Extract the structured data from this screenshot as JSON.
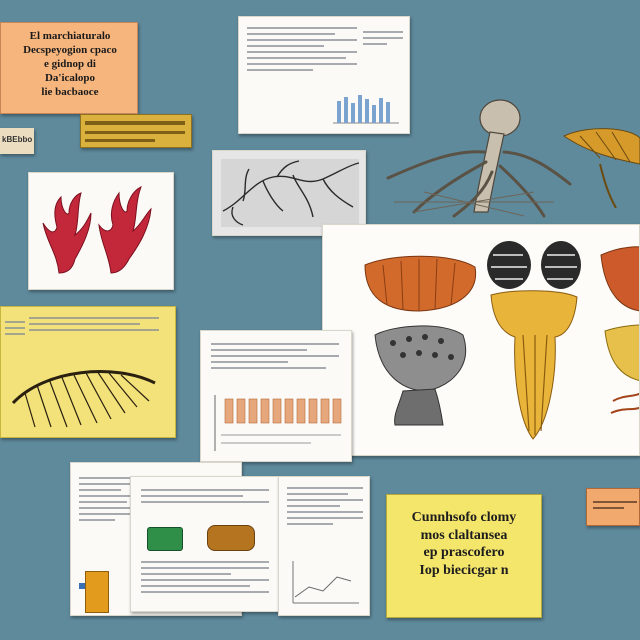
{
  "colors": {
    "background": "#5f8a9c",
    "orange_note": "#f7b57e",
    "yellow_note": "#f4e56b",
    "paper": "#fbfaf6"
  },
  "top_left_note": {
    "lines": [
      "El marchiaturalo",
      "Decspeyogion cpaco",
      "e gidnop di",
      "Da'icalopo",
      "lie bacbaoce"
    ]
  },
  "top_left_tag": {
    "text": "kBEbbo"
  },
  "yellow_sticky": {
    "lines": [
      "Cunnhsofo clomy",
      "mos claltansea",
      "ep prascofero",
      "Iop biecicgar n"
    ]
  },
  "icons": {
    "coral": "coral-illustration-icon",
    "skeleton": "skeleton-creature-icon",
    "insect": "insect-wing-icon",
    "fan": "comb-fan-icon",
    "branches": "branching-tree-icon"
  }
}
